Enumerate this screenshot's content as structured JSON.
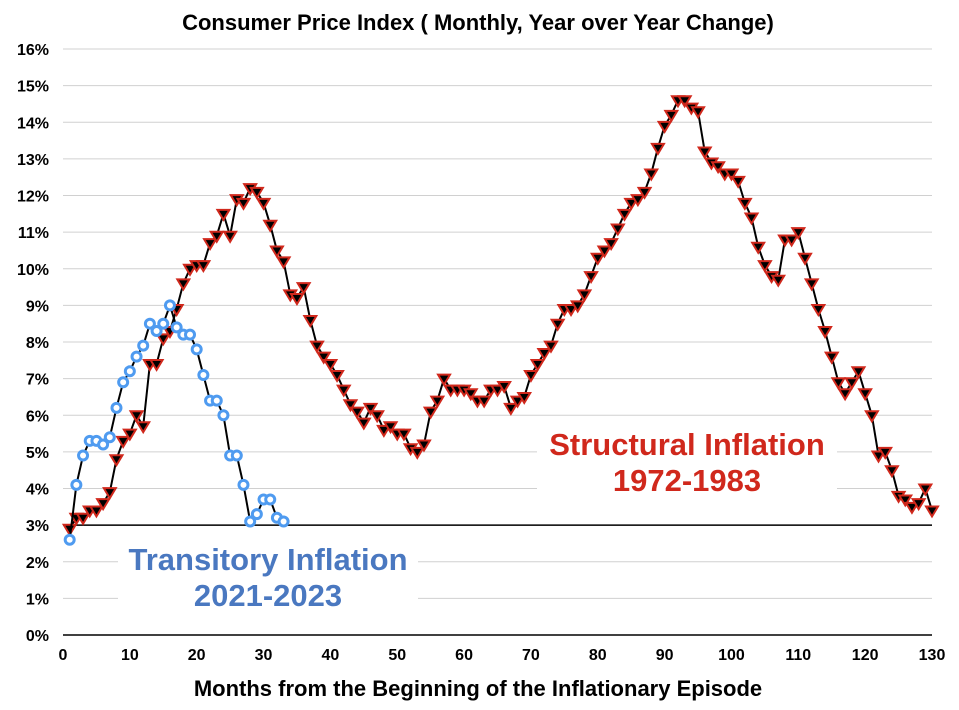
{
  "chart_data": {
    "type": "line",
    "title": "Consumer Price Index ( Monthly, Year over Year Change)",
    "xlabel": "Months from the Beginning of the Inflationary Episode",
    "ylabel": "",
    "xlim": [
      0,
      130
    ],
    "ylim": [
      0,
      16
    ],
    "x_ticks": [
      "0",
      "10",
      "20",
      "30",
      "40",
      "50",
      "60",
      "70",
      "80",
      "90",
      "100",
      "110",
      "120",
      "130"
    ],
    "y_ticks": [
      "0%",
      "1%",
      "2%",
      "3%",
      "4%",
      "5%",
      "6%",
      "7%",
      "8%",
      "9%",
      "10%",
      "11%",
      "12%",
      "13%",
      "14%",
      "15%",
      "16%"
    ],
    "grid": true,
    "reference_line": 3,
    "colors": {
      "transitory": "#4f9bf0",
      "transitory_label": "#4a78c0",
      "structural": "#d0281c",
      "line": "#000000",
      "grid": "#d0d0d0"
    },
    "annotations": [
      {
        "lines": [
          "Transitory Inflation",
          "2021-2023"
        ],
        "series": "transitory"
      },
      {
        "lines": [
          "Structural Inflation",
          "1972-1983"
        ],
        "series": "structural"
      }
    ],
    "series": [
      {
        "key": "structural",
        "marker": "triangle-down",
        "x_start": 1,
        "values": [
          2.9,
          3.2,
          3.2,
          3.4,
          3.4,
          3.6,
          3.9,
          4.8,
          5.3,
          5.5,
          6.0,
          5.7,
          7.4,
          7.4,
          8.1,
          8.3,
          8.9,
          9.6,
          10.0,
          10.1,
          10.1,
          10.7,
          10.9,
          11.5,
          10.9,
          11.9,
          11.8,
          12.2,
          12.1,
          11.8,
          11.2,
          10.5,
          10.2,
          9.3,
          9.2,
          9.5,
          8.6,
          7.9,
          7.6,
          7.4,
          7.1,
          6.7,
          6.3,
          6.1,
          5.8,
          6.2,
          6.0,
          5.6,
          5.7,
          5.5,
          5.5,
          5.1,
          5.0,
          5.2,
          6.1,
          6.4,
          7.0,
          6.7,
          6.7,
          6.7,
          6.6,
          6.4,
          6.4,
          6.7,
          6.7,
          6.8,
          6.2,
          6.4,
          6.5,
          7.1,
          7.4,
          7.7,
          7.9,
          8.5,
          8.9,
          8.9,
          9.0,
          9.3,
          9.8,
          10.3,
          10.5,
          10.7,
          11.1,
          11.5,
          11.8,
          11.9,
          12.1,
          12.6,
          13.3,
          13.9,
          14.2,
          14.6,
          14.6,
          14.4,
          14.3,
          13.2,
          12.9,
          12.8,
          12.6,
          12.6,
          12.4,
          11.8,
          11.4,
          10.6,
          10.1,
          9.8,
          9.7,
          10.8,
          10.8,
          11.0,
          10.3,
          9.6,
          8.9,
          8.3,
          7.6,
          6.9,
          6.6,
          6.9,
          7.2,
          6.6,
          6.0,
          4.9,
          5.0,
          4.5,
          3.8,
          3.7,
          3.5,
          3.6,
          4.0,
          3.4
        ]
      },
      {
        "key": "transitory",
        "marker": "circle-open",
        "x_start": 1,
        "values": [
          2.6,
          4.1,
          4.9,
          5.3,
          5.3,
          5.2,
          5.4,
          6.2,
          6.9,
          7.2,
          7.6,
          7.9,
          8.5,
          8.3,
          8.5,
          9.0,
          8.4,
          8.2,
          8.2,
          7.8,
          7.1,
          6.4,
          6.4,
          6.0,
          4.9,
          4.9,
          4.1,
          3.1,
          3.3,
          3.7,
          3.7,
          3.2,
          3.1
        ]
      }
    ]
  }
}
